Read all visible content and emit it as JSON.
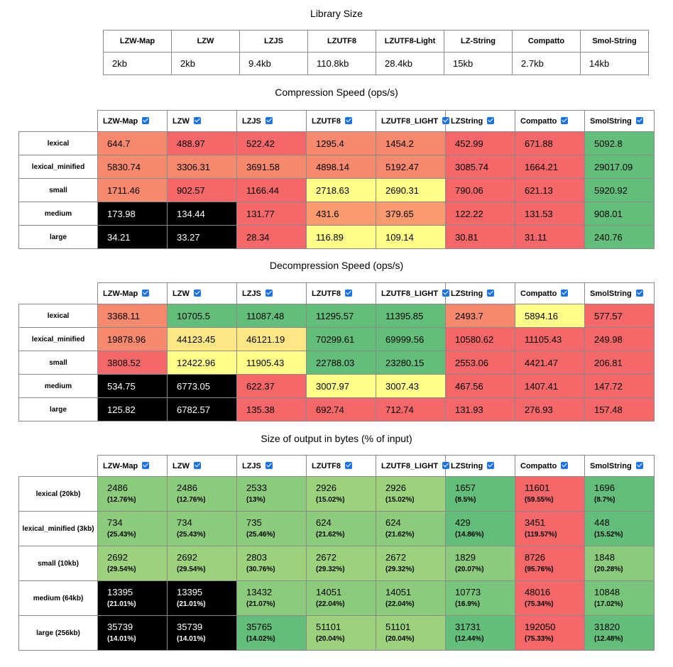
{
  "library_size": {
    "title": "Library Size",
    "headers": [
      "LZW-Map",
      "LZW",
      "LZJS",
      "LZUTF8",
      "LZUTF8-Light",
      "LZ-String",
      "Compatto",
      "Smol-String"
    ],
    "values": [
      "2kb",
      "2kb",
      "9.4kb",
      "110.8kb",
      "28.4kb",
      "15kb",
      "2.7kb",
      "14kb"
    ]
  },
  "compression": {
    "title": "Compression Speed (ops/s)",
    "columns": [
      "LZW-Map",
      "LZW",
      "LZJS",
      "LZUTF8",
      "LZUTF8_LIGHT",
      "LZString",
      "Compatto",
      "SmolString"
    ],
    "rows": [
      {
        "label": "lexical",
        "values": [
          "644.7",
          "488.97",
          "522.42",
          "1295.4",
          "1454.2",
          "452.99",
          "671.88",
          "5092.8"
        ]
      },
      {
        "label": "lexical_minified",
        "values": [
          "5830.74",
          "3306.31",
          "3691.58",
          "4898.14",
          "5192.47",
          "3085.74",
          "1664.21",
          "29017.09"
        ]
      },
      {
        "label": "small",
        "values": [
          "1711.46",
          "902.57",
          "1166.44",
          "2718.63",
          "2690.31",
          "790.06",
          "621.13",
          "5920.92"
        ]
      },
      {
        "label": "medium",
        "values": [
          "173.98",
          "134.44",
          "131.77",
          "431.6",
          "379.65",
          "122.22",
          "131.53",
          "908.01"
        ]
      },
      {
        "label": "large",
        "values": [
          "34.21",
          "33.27",
          "28.34",
          "116.89",
          "109.14",
          "30.81",
          "31.11",
          "240.76"
        ]
      }
    ]
  },
  "decompression": {
    "title": "Decompression Speed (ops/s)",
    "columns": [
      "LZW-Map",
      "LZW",
      "LZJS",
      "LZUTF8",
      "LZUTF8_LIGHT",
      "LZString",
      "Compatto",
      "SmolString"
    ],
    "rows": [
      {
        "label": "lexical",
        "values": [
          "3368.11",
          "10705.5",
          "11087.48",
          "11295.57",
          "11395.85",
          "2493.7",
          "5894.16",
          "577.57"
        ]
      },
      {
        "label": "lexical_minified",
        "values": [
          "19878.96",
          "44123.45",
          "46121.19",
          "70299.61",
          "69999.56",
          "10580.62",
          "11105.43",
          "249.98"
        ]
      },
      {
        "label": "small",
        "values": [
          "3808.52",
          "12422.96",
          "11905.43",
          "22788.03",
          "23280.15",
          "2553.06",
          "4421.47",
          "206.81"
        ]
      },
      {
        "label": "medium",
        "values": [
          "534.75",
          "6773.05",
          "622.37",
          "3007.97",
          "3007.43",
          "467.56",
          "1407.41",
          "147.72"
        ]
      },
      {
        "label": "large",
        "values": [
          "125.82",
          "6782.57",
          "135.38",
          "692.74",
          "712.74",
          "131.93",
          "276.93",
          "157.48"
        ]
      }
    ]
  },
  "output_size": {
    "title": "Size of output in bytes (% of input)",
    "columns": [
      "LZW-Map",
      "LZW",
      "LZJS",
      "LZUTF8",
      "LZUTF8_LIGHT",
      "LZString",
      "Compatto",
      "SmolString"
    ],
    "rows": [
      {
        "label": "lexical (20kb)",
        "values": [
          "2486",
          "2486",
          "2533",
          "2926",
          "2926",
          "1657",
          "11601",
          "1696"
        ],
        "pcts": [
          "(12.76%)",
          "(12.76%)",
          "(13%)",
          "(15.02%)",
          "(15.02%)",
          "(8.5%)",
          "(59.55%)",
          "(8.7%)"
        ]
      },
      {
        "label": "lexical_minified (3kb)",
        "values": [
          "734",
          "734",
          "735",
          "624",
          "624",
          "429",
          "3451",
          "448"
        ],
        "pcts": [
          "(25.43%)",
          "(25.43%)",
          "(25.46%)",
          "(21.62%)",
          "(21.62%)",
          "(14.86%)",
          "(119.57%)",
          "(15.52%)"
        ]
      },
      {
        "label": "small (10kb)",
        "values": [
          "2692",
          "2692",
          "2803",
          "2672",
          "2672",
          "1829",
          "8726",
          "1848"
        ],
        "pcts": [
          "(29.54%)",
          "(29.54%)",
          "(30.76%)",
          "(29.32%)",
          "(29.32%)",
          "(20.07%)",
          "(95.76%)",
          "(20.28%)"
        ]
      },
      {
        "label": "medium (64kb)",
        "values": [
          "13395",
          "13395",
          "13432",
          "14051",
          "14051",
          "10773",
          "48016",
          "10848"
        ],
        "pcts": [
          "(21.01%)",
          "(21.01%)",
          "(21.07%)",
          "(22.04%)",
          "(22.04%)",
          "(16.9%)",
          "(75.34%)",
          "(17.02%)"
        ]
      },
      {
        "label": "large (256kb)",
        "values": [
          "35739",
          "35739",
          "35765",
          "51101",
          "51101",
          "31731",
          "192050",
          "31820"
        ],
        "pcts": [
          "(14.01%)",
          "(14.01%)",
          "(14.02%)",
          "(20.04%)",
          "(20.04%)",
          "(12.44%)",
          "(75.33%)",
          "(12.48%)"
        ]
      }
    ]
  },
  "cell_colors": {
    "red": "#f5686a",
    "salmon": "#f7896e",
    "orange": "#f99a6f",
    "yellow": "#fefe88",
    "light_yellow": "#fce784",
    "green": "#63be7b",
    "mid_green": "#78c67c",
    "light_green": "#8ccb7b",
    "pale_green": "#9cd27c",
    "black": "#000000",
    "checkbox": "#1a73e8"
  }
}
